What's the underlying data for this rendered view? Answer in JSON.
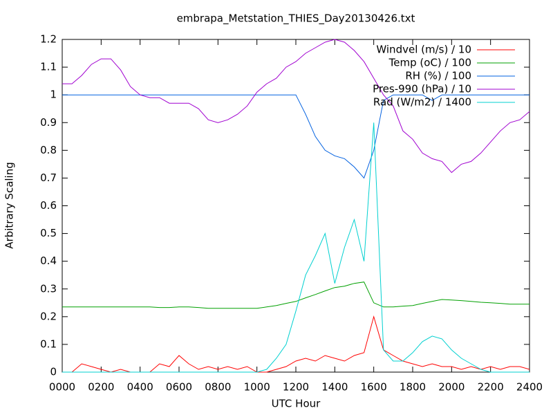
{
  "chart_data": {
    "type": "line",
    "title": "embrapa_Metstation_THIES_Day20130426.txt",
    "xlabel": "UTC Hour",
    "ylabel": "Arbitrary Scaling",
    "legend": "top-right",
    "xlim": [
      0,
      2400
    ],
    "xticks": [
      {
        "value": 0,
        "label": "0000"
      },
      {
        "value": 200,
        "label": "0200"
      },
      {
        "value": 400,
        "label": "0400"
      },
      {
        "value": 600,
        "label": "0600"
      },
      {
        "value": 800,
        "label": "0800"
      },
      {
        "value": 1000,
        "label": "1000"
      },
      {
        "value": 1200,
        "label": "1200"
      },
      {
        "value": 1400,
        "label": "1400"
      },
      {
        "value": 1600,
        "label": "1600"
      },
      {
        "value": 1800,
        "label": "1800"
      },
      {
        "value": 2000,
        "label": "2000"
      },
      {
        "value": 2200,
        "label": "2200"
      },
      {
        "value": 2400,
        "label": "2400"
      }
    ],
    "ylim": [
      0,
      1.2
    ],
    "yticks": [
      0,
      0.1,
      0.2,
      0.3,
      0.4,
      0.5,
      0.6,
      0.7,
      0.8,
      0.9,
      1,
      1.1,
      1.2
    ],
    "x": [
      0,
      50,
      100,
      150,
      200,
      250,
      300,
      350,
      400,
      450,
      500,
      550,
      600,
      650,
      700,
      750,
      800,
      850,
      900,
      950,
      1000,
      1050,
      1100,
      1150,
      1200,
      1250,
      1300,
      1350,
      1400,
      1450,
      1500,
      1550,
      1600,
      1650,
      1700,
      1750,
      1800,
      1850,
      1900,
      1950,
      2000,
      2050,
      2100,
      2150,
      2200,
      2250,
      2300,
      2350,
      2400
    ],
    "series": [
      {
        "name": "Windvel (m/s) / 10",
        "color": "#ff0000",
        "values": [
          0,
          0,
          0.03,
          0.02,
          0.01,
          0,
          0.01,
          0,
          0,
          0,
          0.03,
          0.02,
          0.06,
          0.03,
          0.01,
          0.02,
          0.01,
          0.02,
          0.01,
          0.02,
          0,
          0,
          0.01,
          0.02,
          0.04,
          0.05,
          0.04,
          0.06,
          0.05,
          0.04,
          0.06,
          0.07,
          0.2,
          0.08,
          0.06,
          0.04,
          0.03,
          0.02,
          0.03,
          0.02,
          0.02,
          0.01,
          0.02,
          0.01,
          0.02,
          0.01,
          0.02,
          0.02,
          0.01
        ]
      },
      {
        "name": "Temp (oC) / 100",
        "color": "#00a000",
        "values": [
          0.235,
          0.235,
          0.235,
          0.235,
          0.235,
          0.235,
          0.235,
          0.235,
          0.235,
          0.235,
          0.233,
          0.233,
          0.235,
          0.235,
          0.233,
          0.23,
          0.23,
          0.23,
          0.23,
          0.23,
          0.23,
          0.235,
          0.24,
          0.248,
          0.255,
          0.268,
          0.28,
          0.293,
          0.305,
          0.31,
          0.32,
          0.325,
          0.25,
          0.235,
          0.235,
          0.238,
          0.24,
          0.248,
          0.255,
          0.262,
          0.26,
          0.258,
          0.255,
          0.252,
          0.25,
          0.248,
          0.245,
          0.245,
          0.245
        ]
      },
      {
        "name": "RH (%) / 100",
        "color": "#0060e0",
        "values": [
          1,
          1,
          1,
          1,
          1,
          1,
          1,
          1,
          1,
          1,
          1,
          1,
          1,
          1,
          1,
          1,
          1,
          1,
          1,
          1,
          1,
          1,
          1,
          1,
          1,
          0.93,
          0.85,
          0.8,
          0.78,
          0.77,
          0.74,
          0.7,
          0.8,
          0.98,
          1,
          1,
          1,
          1,
          0.98,
          1,
          1,
          1,
          1,
          1,
          1,
          1,
          1,
          1,
          1
        ]
      },
      {
        "name": "Pres-990 (hPa) / 10",
        "color": "#a000d0",
        "values": [
          1.04,
          1.04,
          1.07,
          1.11,
          1.13,
          1.13,
          1.09,
          1.03,
          1.0,
          0.99,
          0.99,
          0.97,
          0.97,
          0.97,
          0.95,
          0.91,
          0.9,
          0.91,
          0.93,
          0.96,
          1.01,
          1.04,
          1.06,
          1.1,
          1.12,
          1.15,
          1.17,
          1.19,
          1.2,
          1.19,
          1.16,
          1.12,
          1.06,
          1.0,
          0.96,
          0.87,
          0.84,
          0.79,
          0.77,
          0.76,
          0.72,
          0.75,
          0.76,
          0.79,
          0.83,
          0.87,
          0.9,
          0.91,
          0.94
        ]
      },
      {
        "name": "Rad (W/m2) / 1400",
        "color": "#00d0d0",
        "values": [
          0,
          0,
          0,
          0,
          0,
          0,
          0,
          0,
          0,
          0,
          0,
          0,
          0,
          0,
          0,
          0,
          0,
          0,
          0,
          0,
          0,
          0.01,
          0.05,
          0.1,
          0.22,
          0.35,
          0.42,
          0.5,
          0.32,
          0.45,
          0.55,
          0.4,
          0.9,
          0.08,
          0.04,
          0.04,
          0.07,
          0.11,
          0.13,
          0.12,
          0.08,
          0.05,
          0.03,
          0.01,
          0,
          0,
          0,
          0,
          0
        ]
      }
    ]
  }
}
